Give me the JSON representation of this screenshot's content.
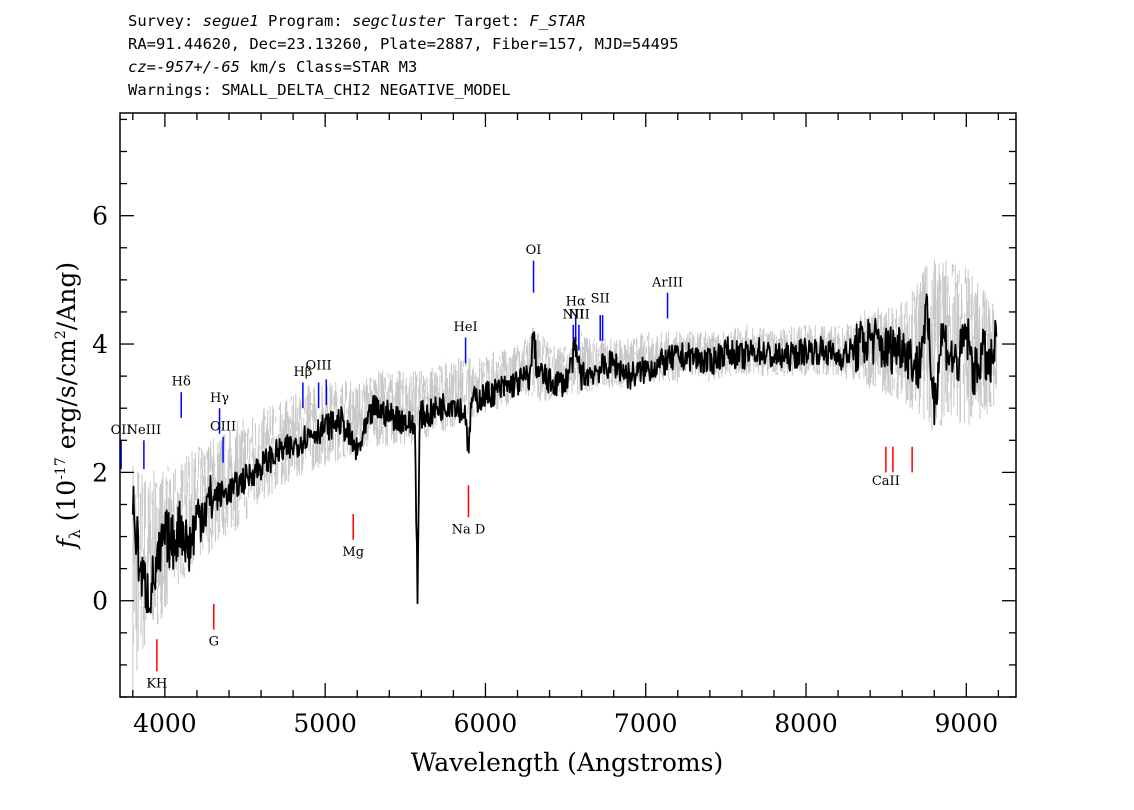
{
  "header": {
    "line1": {
      "survey_label": "Survey:",
      "survey": "segue1",
      "program_label": "Program:",
      "program": "segcluster",
      "target_label": "Target:",
      "target": "F_STAR"
    },
    "line2": "RA=91.44620, Dec=23.13260, Plate=2887, Fiber=157, MJD=54495",
    "line3": {
      "cz_label": "cz=",
      "cz_value": "-957+/-65",
      "cz_unit": "km/s",
      "class_text": "Class=STAR M3"
    },
    "line4": "Warnings: SMALL_DELTA_CHI2 NEGATIVE_MODEL"
  },
  "chart_data": {
    "type": "line",
    "xlabel": "Wavelength (Angstroms)",
    "ylabel": {
      "prefix": "f",
      "subscript": "λ",
      "open": "(10",
      "exponent": "-17",
      "mid": "erg/s/cm",
      "exponent2": "2",
      "close": "/Ang)"
    },
    "xlim": [
      3720,
      9310
    ],
    "ylim": [
      -1.5,
      7.6
    ],
    "xticks": [
      4000,
      5000,
      6000,
      7000,
      8000,
      9000
    ],
    "yticks": [
      0,
      2,
      4,
      6
    ],
    "xtick_labels": [
      "4000",
      "5000",
      "6000",
      "7000",
      "8000",
      "9000"
    ],
    "ytick_labels": [
      "0",
      "2",
      "4",
      "6"
    ],
    "x_minor_step": 200,
    "y_minor_step": 0.5,
    "series": [
      {
        "role": "flux",
        "color": "#000000",
        "x": [
          3800,
          3850,
          3900,
          3950,
          4000,
          4050,
          4100,
          4150,
          4200,
          4300,
          4400,
          4500,
          4600,
          4700,
          4800,
          4900,
          5000,
          5100,
          5200,
          5300,
          5400,
          5500,
          5560,
          5577,
          5590,
          5650,
          5700,
          5800,
          5880,
          5895,
          5910,
          6000,
          6100,
          6200,
          6280,
          6300,
          6320,
          6400,
          6500,
          6560,
          6600,
          6700,
          6800,
          6900,
          7000,
          7100,
          7200,
          7300,
          7400,
          7500,
          7600,
          7700,
          7800,
          7900,
          8000,
          8100,
          8200,
          8300,
          8400,
          8500,
          8600,
          8700,
          8750,
          8800,
          8850,
          8900,
          8950,
          9000,
          9050,
          9100,
          9150,
          9190
        ],
        "y": [
          1.5,
          0.4,
          0.1,
          0.5,
          1.0,
          0.9,
          1.2,
          0.8,
          1.3,
          1.6,
          1.7,
          1.9,
          2.1,
          2.3,
          2.4,
          2.6,
          2.7,
          2.8,
          2.3,
          3.0,
          2.9,
          2.8,
          2.7,
          0.0,
          2.9,
          2.9,
          3.0,
          3.1,
          2.9,
          2.2,
          3.1,
          3.2,
          3.3,
          3.4,
          3.5,
          4.2,
          3.6,
          3.4,
          3.4,
          3.9,
          3.5,
          3.6,
          3.7,
          3.5,
          3.6,
          3.7,
          3.8,
          3.8,
          3.7,
          3.9,
          3.8,
          3.9,
          3.8,
          3.8,
          3.9,
          3.9,
          3.8,
          3.9,
          4.1,
          3.9,
          4.0,
          3.6,
          4.5,
          3.1,
          4.2,
          3.8,
          3.7,
          4.2,
          3.5,
          3.9,
          3.6,
          4.1
        ]
      },
      {
        "role": "noise",
        "color": "#c8c8c8",
        "x": [
          3800,
          3900,
          4000,
          4100,
          4200,
          4300,
          4400,
          4500,
          4600,
          4700,
          4800,
          4900,
          5000,
          5100,
          5200,
          5300,
          5400,
          5500,
          5600,
          5700,
          5800,
          5900,
          6000,
          6100,
          6200,
          6300,
          6400,
          6500,
          6600,
          6700,
          6800,
          6900,
          7000,
          7100,
          7200,
          7300,
          7400,
          7500,
          7600,
          7700,
          7800,
          7900,
          8000,
          8100,
          8200,
          8300,
          8400,
          8500,
          8600,
          8700,
          8800,
          8900,
          9000,
          9100,
          9190
        ],
        "y_low": [
          -1.5,
          -0.6,
          -0.2,
          0.3,
          0.5,
          0.8,
          1.0,
          1.2,
          1.5,
          1.7,
          1.9,
          2.0,
          2.1,
          2.2,
          2.3,
          2.4,
          2.4,
          2.4,
          2.5,
          2.6,
          2.7,
          2.8,
          2.9,
          3.0,
          3.1,
          3.1,
          3.1,
          3.2,
          3.2,
          3.3,
          3.3,
          3.3,
          3.4,
          3.4,
          3.4,
          3.5,
          3.4,
          3.5,
          3.5,
          3.5,
          3.5,
          3.5,
          3.5,
          3.5,
          3.5,
          3.4,
          3.3,
          3.2,
          3.1,
          2.9,
          2.6,
          2.8,
          2.7,
          2.8,
          3.0
        ],
        "y_high": [
          2.4,
          2.0,
          2.1,
          2.2,
          2.4,
          2.6,
          2.7,
          2.9,
          3.0,
          3.1,
          3.2,
          3.4,
          3.4,
          3.5,
          3.4,
          3.6,
          3.6,
          3.6,
          3.6,
          3.7,
          3.8,
          3.8,
          3.9,
          3.9,
          4.0,
          4.3,
          4.0,
          4.0,
          4.2,
          4.1,
          4.1,
          4.1,
          4.2,
          4.2,
          4.2,
          4.2,
          4.2,
          4.2,
          4.3,
          4.3,
          4.2,
          4.3,
          4.3,
          4.3,
          4.3,
          4.4,
          4.6,
          4.6,
          4.7,
          5.0,
          5.5,
          5.3,
          5.2,
          4.9,
          4.6
        ]
      }
    ],
    "lines": [
      {
        "label": "OII",
        "wave": 3727,
        "y_base": 2.05,
        "y_top": 2.5,
        "color": "blue",
        "label_y": 2.6
      },
      {
        "label": "NeIII",
        "wave": 3869,
        "y_base": 2.05,
        "y_top": 2.5,
        "color": "blue",
        "label_y": 2.6
      },
      {
        "label": "Hδ",
        "wave": 4102,
        "y_base": 2.85,
        "y_top": 3.25,
        "color": "blue",
        "label_y": 3.35
      },
      {
        "label": "Hγ",
        "wave": 4341,
        "y_base": 2.6,
        "y_top": 3.0,
        "color": "blue",
        "label_y": 3.1
      },
      {
        "label": "OIII",
        "wave": 4363,
        "y_base": 2.15,
        "y_top": 2.55,
        "color": "blue",
        "label_y": 2.65
      },
      {
        "label": "Hβ",
        "wave": 4861,
        "y_base": 3.0,
        "y_top": 3.4,
        "color": "blue",
        "label_y": 3.5
      },
      {
        "label": "OIII",
        "wave": 4959,
        "y_base": 3.0,
        "y_top": 3.4,
        "color": "blue",
        "label_y": 3.6
      },
      {
        "label": "",
        "wave": 5007,
        "y_base": 3.05,
        "y_top": 3.45,
        "color": "blue",
        "label_y": 3.55
      },
      {
        "label": "HeI",
        "wave": 5876,
        "y_base": 3.7,
        "y_top": 4.1,
        "color": "blue",
        "label_y": 4.2
      },
      {
        "label": "OI",
        "wave": 6300,
        "y_base": 4.8,
        "y_top": 5.3,
        "color": "blue",
        "label_y": 5.4
      },
      {
        "label": "NII",
        "wave": 6548,
        "y_base": 3.9,
        "y_top": 4.3,
        "color": "blue",
        "label_y": 4.4
      },
      {
        "label": "Hα",
        "wave": 6563,
        "y_base": 4.05,
        "y_top": 4.45,
        "color": "blue",
        "label_y": 4.6
      },
      {
        "label": "NII",
        "wave": 6583,
        "y_base": 3.9,
        "y_top": 4.3,
        "color": "blue",
        "label_y": 4.4
      },
      {
        "label": "SII",
        "wave": 6716,
        "y_base": 4.05,
        "y_top": 4.45,
        "color": "blue",
        "label_y": 4.65
      },
      {
        "label": "",
        "wave": 6731,
        "y_base": 4.05,
        "y_top": 4.45,
        "color": "blue",
        "label_y": 4.55
      },
      {
        "label": "ArIII",
        "wave": 7136,
        "y_base": 4.4,
        "y_top": 4.8,
        "color": "blue",
        "label_y": 4.9
      },
      {
        "label": "KH",
        "wave": 3950,
        "y_base": -1.1,
        "y_top": -0.6,
        "color": "red",
        "label_y": -1.35
      },
      {
        "label": "G",
        "wave": 4305,
        "y_base": -0.45,
        "y_top": -0.05,
        "color": "red",
        "label_y": -0.7
      },
      {
        "label": "Mg",
        "wave": 5175,
        "y_base": 0.95,
        "y_top": 1.35,
        "color": "red",
        "label_y": 0.7
      },
      {
        "label": "Na D",
        "wave": 5894,
        "y_base": 1.3,
        "y_top": 1.8,
        "color": "red",
        "label_y": 1.05
      },
      {
        "label": "CaII",
        "wave": 8498,
        "y_base": 2.0,
        "y_top": 2.4,
        "color": "red",
        "label_y": 1.8
      },
      {
        "label": "",
        "wave": 8542,
        "y_base": 2.0,
        "y_top": 2.4,
        "color": "red",
        "label_y": 1.8
      },
      {
        "label": "",
        "wave": 8662,
        "y_base": 2.0,
        "y_top": 2.4,
        "color": "red",
        "label_y": 1.8
      }
    ]
  }
}
